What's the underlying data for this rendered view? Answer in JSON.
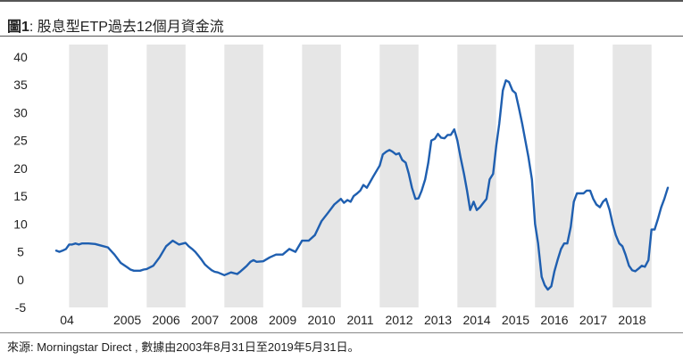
{
  "header": {
    "title_prefix": "圖1",
    "title_text": ": 股息型ETP過去12個月資金流"
  },
  "footer": {
    "source": "來源:  Morningstar Direct , 數據由2003年8月31日至2019年5月31日。"
  },
  "colors": {
    "line": "#1f5fb0",
    "band": "#e6e6e6"
  },
  "chart_data": {
    "type": "line",
    "title": "股息型ETP過去12個月資金流",
    "xlabel": "",
    "ylabel": "",
    "ylim": [
      -5,
      40
    ],
    "yticks": [
      "40",
      "35",
      "30",
      "25",
      "20",
      "15",
      "10",
      "5",
      "0",
      "-5"
    ],
    "xticks": [
      "04",
      "2005",
      "2006",
      "2007",
      "2008",
      "2009",
      "2010",
      "2011",
      "2012",
      "2013",
      "2014",
      "2015",
      "2016",
      "2017",
      "2018"
    ],
    "xlim": [
      2003.67,
      2019.42
    ],
    "shaded_years": [
      2004,
      2006,
      2008,
      2010,
      2012,
      2014,
      2016,
      2018
    ],
    "grid": false,
    "legend": "none",
    "series": [
      {
        "x": [
          2003.67,
          2003.75,
          2003.83,
          2003.92,
          2004.0,
          2004.08,
          2004.17,
          2004.25,
          2004.33,
          2004.5,
          2004.67,
          2004.83,
          2005.0,
          2005.17,
          2005.33,
          2005.5,
          2005.58,
          2005.67,
          2005.75,
          2005.83,
          2005.92,
          2006.0,
          2006.17,
          2006.33,
          2006.5,
          2006.67,
          2006.83,
          2007.0,
          2007.08,
          2007.17,
          2007.25,
          2007.33,
          2007.42,
          2007.5,
          2007.58,
          2007.67,
          2007.75,
          2007.83,
          2008.0,
          2008.17,
          2008.33,
          2008.42,
          2008.5,
          2008.58,
          2008.67,
          2008.75,
          2008.83,
          2009.0,
          2009.17,
          2009.33,
          2009.5,
          2009.67,
          2009.83,
          2010.0,
          2010.17,
          2010.33,
          2010.5,
          2010.67,
          2010.83,
          2011.0,
          2011.08,
          2011.17,
          2011.25,
          2011.33,
          2011.42,
          2011.5,
          2011.58,
          2011.67,
          2011.75,
          2011.83,
          2012.0,
          2012.08,
          2012.17,
          2012.25,
          2012.33,
          2012.42,
          2012.5,
          2012.58,
          2012.67,
          2012.75,
          2012.83,
          2012.92,
          2013.0,
          2013.08,
          2013.17,
          2013.25,
          2013.33,
          2013.42,
          2013.5,
          2013.58,
          2013.67,
          2013.75,
          2013.83,
          2013.92,
          2014.0,
          2014.08,
          2014.17,
          2014.25,
          2014.33,
          2014.42,
          2014.5,
          2014.58,
          2014.67,
          2014.75,
          2014.83,
          2014.92,
          2015.0,
          2015.08,
          2015.17,
          2015.25,
          2015.33,
          2015.42,
          2015.5,
          2015.58,
          2015.67,
          2015.75,
          2015.83,
          2015.92,
          2016.0,
          2016.08,
          2016.17,
          2016.25,
          2016.33,
          2016.42,
          2016.5,
          2016.58,
          2016.67,
          2016.75,
          2016.83,
          2016.92,
          2017.0,
          2017.08,
          2017.17,
          2017.25,
          2017.33,
          2017.42,
          2017.5,
          2017.58,
          2017.67,
          2017.75,
          2017.83,
          2017.92,
          2018.0,
          2018.08,
          2018.17,
          2018.25,
          2018.33,
          2018.42,
          2018.5,
          2018.58,
          2018.67,
          2018.75,
          2018.83,
          2018.92,
          2019.0,
          2019.08,
          2019.17,
          2019.25,
          2019.33,
          2019.42
        ],
        "y": [
          5.2,
          5.0,
          5.2,
          5.5,
          6.3,
          6.3,
          6.5,
          6.3,
          6.5,
          6.5,
          6.4,
          6.1,
          5.8,
          4.5,
          3.0,
          2.2,
          1.8,
          1.6,
          1.6,
          1.6,
          1.8,
          1.9,
          2.5,
          4.0,
          6.0,
          7.0,
          6.3,
          6.6,
          6.0,
          5.5,
          5.0,
          4.3,
          3.5,
          2.7,
          2.2,
          1.7,
          1.4,
          1.3,
          0.8,
          1.3,
          1.0,
          1.5,
          2.0,
          2.5,
          3.2,
          3.5,
          3.2,
          3.3,
          4.0,
          4.5,
          4.5,
          5.5,
          5.0,
          7.0,
          7.0,
          8.0,
          10.5,
          12.0,
          13.5,
          14.5,
          13.8,
          14.3,
          14.0,
          15.0,
          15.5,
          16.0,
          17.0,
          16.5,
          17.5,
          18.5,
          20.5,
          22.5,
          23.0,
          23.3,
          23.0,
          22.5,
          22.7,
          21.5,
          21.0,
          19.0,
          16.5,
          14.5,
          14.6,
          16.0,
          18.0,
          21.0,
          25.0,
          25.3,
          26.2,
          25.5,
          25.4,
          26.0,
          26.0,
          27.0,
          25.0,
          22.0,
          19.0,
          16.0,
          12.5,
          14.0,
          12.5,
          13.0,
          13.8,
          14.5,
          18.0,
          19.0,
          24.0,
          28.0,
          34.0,
          35.8,
          35.5,
          34.0,
          33.5,
          31.0,
          28.0,
          25.0,
          22.0,
          18.0,
          10.0,
          6.5,
          0.5,
          -1.0,
          -1.8,
          -1.2,
          1.5,
          3.5,
          5.5,
          6.5,
          6.5,
          9.5,
          14.0,
          15.5,
          15.5,
          15.5,
          16.0,
          16.0,
          14.5,
          13.5,
          13.0,
          14.0,
          14.5,
          12.5,
          10.0,
          8.0,
          6.5,
          6.0,
          4.5,
          2.5,
          1.7,
          1.5,
          2.0,
          2.5,
          2.3,
          3.5,
          9.0,
          9.0,
          11.0,
          13.0,
          14.5,
          16.5
        ]
      }
    ]
  }
}
